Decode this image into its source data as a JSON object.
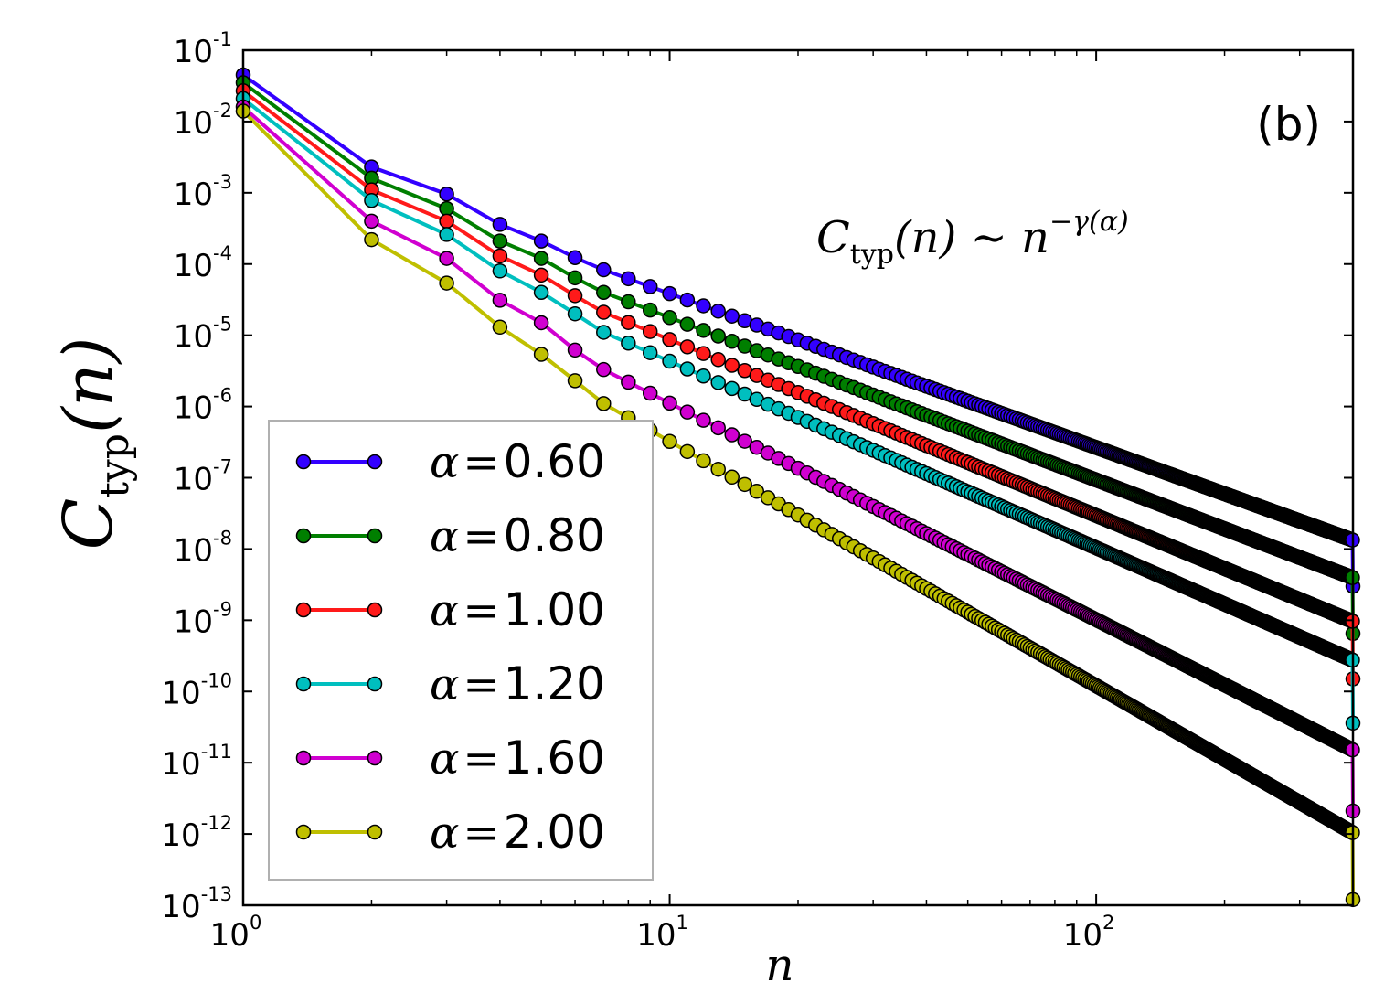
{
  "chart_data": {
    "type": "line",
    "title": "",
    "panel_label": "(b)",
    "annotation": {
      "C": "C",
      "sub": "typ",
      "body": "(n) ∼ n",
      "exp": "−γ(α)"
    },
    "xlabel": "n",
    "ylabel": {
      "C": "C",
      "sub": "typ",
      "rest": "(n)"
    },
    "xscale": "log",
    "yscale": "log",
    "xlim": [
      1,
      400
    ],
    "ylim": [
      1e-13,
      0.1
    ],
    "x_ticks": [
      {
        "value": 1,
        "base": "10",
        "exp": "0"
      },
      {
        "value": 10,
        "base": "10",
        "exp": "1"
      },
      {
        "value": 100,
        "base": "10",
        "exp": "2"
      }
    ],
    "y_ticks": [
      {
        "value": 0.1,
        "base": "10",
        "exp": "-1"
      },
      {
        "value": 0.01,
        "base": "10",
        "exp": "-2"
      },
      {
        "value": 0.001,
        "base": "10",
        "exp": "-3"
      },
      {
        "value": 0.0001,
        "base": "10",
        "exp": "-4"
      },
      {
        "value": 1e-05,
        "base": "10",
        "exp": "-5"
      },
      {
        "value": 1e-06,
        "base": "10",
        "exp": "-6"
      },
      {
        "value": 1e-07,
        "base": "10",
        "exp": "-7"
      },
      {
        "value": 1e-08,
        "base": "10",
        "exp": "-8"
      },
      {
        "value": 1e-09,
        "base": "10",
        "exp": "-9"
      },
      {
        "value": 1e-10,
        "base": "10",
        "exp": "-10"
      },
      {
        "value": 1e-11,
        "base": "10",
        "exp": "-11"
      },
      {
        "value": 1e-12,
        "base": "10",
        "exp": "-12"
      },
      {
        "value": 1e-13,
        "base": "10",
        "exp": "-13"
      }
    ],
    "legend_position": "lower-left",
    "n_max": 400,
    "series": [
      {
        "name": "α = 0.60",
        "alpha_symbol": "α",
        "alpha_value": "0.60",
        "color": "#3300ff",
        "head": [
          [
            1,
            0.045
          ],
          [
            2,
            0.0023
          ],
          [
            3,
            0.00096
          ],
          [
            4,
            0.00036
          ],
          [
            5,
            0.00021
          ],
          [
            6,
            0.000123
          ],
          [
            7,
            8.3e-05
          ]
        ],
        "tail_n0": 7,
        "tail_slope": -2.16,
        "final_value": 3e-09
      },
      {
        "name": "α = 0.80",
        "alpha_symbol": "α",
        "alpha_value": "0.80",
        "color": "#007f00",
        "head": [
          [
            1,
            0.035
          ],
          [
            2,
            0.0016
          ],
          [
            3,
            0.0006
          ],
          [
            4,
            0.00021
          ],
          [
            5,
            0.00012
          ],
          [
            6,
            6.4e-05
          ],
          [
            7,
            4e-05
          ]
        ],
        "tail_n0": 7,
        "tail_slope": -2.28,
        "final_value": 6.5e-10
      },
      {
        "name": "α = 1.00",
        "alpha_symbol": "α",
        "alpha_value": "1.00",
        "color": "#ff1a1a",
        "head": [
          [
            1,
            0.027
          ],
          [
            2,
            0.0011
          ],
          [
            3,
            0.0004
          ],
          [
            4,
            0.00013
          ],
          [
            5,
            7e-05
          ],
          [
            6,
            3.6e-05
          ],
          [
            7,
            2.1e-05
          ]
        ],
        "tail_n0": 7,
        "tail_slope": -2.47,
        "final_value": 1.5e-10
      },
      {
        "name": "α = 1.20",
        "alpha_symbol": "α",
        "alpha_value": "1.20",
        "color": "#00bfbf",
        "head": [
          [
            1,
            0.021
          ],
          [
            2,
            0.00078
          ],
          [
            3,
            0.00026
          ],
          [
            4,
            8e-05
          ],
          [
            5,
            4e-05
          ],
          [
            6,
            2e-05
          ],
          [
            7,
            1.1e-05
          ]
        ],
        "tail_n0": 7,
        "tail_slope": -2.62,
        "final_value": 3.6e-11
      },
      {
        "name": "α = 1.60",
        "alpha_symbol": "α",
        "alpha_value": "1.60",
        "color": "#d000d0",
        "head": [
          [
            1,
            0.016
          ],
          [
            2,
            0.0004
          ],
          [
            3,
            0.00012
          ],
          [
            4,
            3.1e-05
          ],
          [
            5,
            1.5e-05
          ],
          [
            6,
            6.2e-06
          ],
          [
            7,
            3.3e-06
          ]
        ],
        "tail_n0": 7,
        "tail_slope": -3.04,
        "final_value": 2.1e-12
      },
      {
        "name": "α = 2.00",
        "alpha_symbol": "α",
        "alpha_value": "2.00",
        "color": "#bfbf00",
        "head": [
          [
            1,
            0.014
          ],
          [
            2,
            0.00022
          ],
          [
            3,
            5.4e-05
          ],
          [
            4,
            1.3e-05
          ],
          [
            5,
            5.4e-06
          ],
          [
            6,
            2.3e-06
          ],
          [
            7,
            1.1e-06
          ]
        ],
        "tail_n0": 7,
        "tail_slope": -3.43,
        "final_value": 1.2e-13
      }
    ]
  }
}
